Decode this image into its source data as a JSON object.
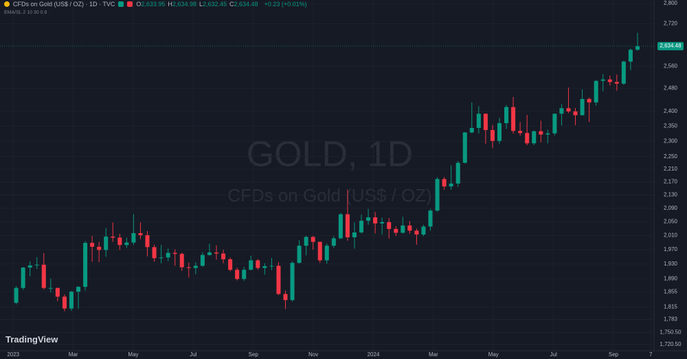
{
  "header": {
    "symbol": "CFDs on Gold (US$ / OZ) · 1D · TVC",
    "ohlc": [
      {
        "key": "O",
        "value": "2,633.95"
      },
      {
        "key": "H",
        "value": "2,634.98"
      },
      {
        "key": "L",
        "value": "2,632.45"
      },
      {
        "key": "C",
        "value": "2,634.48"
      }
    ],
    "change": "+0.23 (+0.01%)",
    "indicator": "EMA/SL 2 10 30 0.6",
    "watermark": "GOLD, 1D",
    "watermark_sub": "CFDs on Gold (US$ / OZ)",
    "brand": "TradingView"
  },
  "chart_data": {
    "type": "candlestick",
    "log_scale": true,
    "grid": true,
    "up_color": "#089981",
    "down_color": "#f23645",
    "last_price": {
      "value": 2634.48,
      "label": "2,634.48"
    },
    "xlim": [
      -0.44,
      21.35
    ],
    "xticks": [
      {
        "value": 0,
        "label": "2023"
      },
      {
        "value": 2,
        "label": "Mar"
      },
      {
        "value": 4,
        "label": "May"
      },
      {
        "value": 6,
        "label": "Jul"
      },
      {
        "value": 8,
        "label": "Sep"
      },
      {
        "value": 10,
        "label": "Nov"
      },
      {
        "value": 12,
        "label": "2024"
      },
      {
        "value": 14,
        "label": "Mar"
      },
      {
        "value": 16,
        "label": "May"
      },
      {
        "value": 18,
        "label": "Jul"
      },
      {
        "value": 20,
        "label": "Sep"
      },
      {
        "value": 21.24,
        "label": "7"
      }
    ],
    "ylim": [
      1705,
      2814
    ],
    "yticks": [
      {
        "value": 2800,
        "label": "2,800"
      },
      {
        "value": 2720,
        "label": "2,720"
      },
      {
        "value": 2560,
        "label": "2,560"
      },
      {
        "value": 2480,
        "label": "2,480"
      },
      {
        "value": 2400,
        "label": "2,400"
      },
      {
        "value": 2350,
        "label": "2,350"
      },
      {
        "value": 2300,
        "label": "2,300"
      },
      {
        "value": 2250,
        "label": "2,250"
      },
      {
        "value": 2210,
        "label": "2,210"
      },
      {
        "value": 2170,
        "label": "2,170"
      },
      {
        "value": 2130,
        "label": "2,130"
      },
      {
        "value": 2090,
        "label": "2,090"
      },
      {
        "value": 2050,
        "label": "2,050"
      },
      {
        "value": 2010,
        "label": "2,010"
      },
      {
        "value": 1970,
        "label": "1,970"
      },
      {
        "value": 1930,
        "label": "1,930"
      },
      {
        "value": 1890,
        "label": "1,890"
      },
      {
        "value": 1855,
        "label": "1,855"
      },
      {
        "value": 1815,
        "label": "1,815"
      },
      {
        "value": 1783,
        "label": "1,783"
      },
      {
        "value": 1750.5,
        "label": "1,750.50"
      },
      {
        "value": 1720.5,
        "label": "1,720.50"
      }
    ],
    "x": [
      0.1,
      0.33,
      0.56,
      0.79,
      1.02,
      1.25,
      1.48,
      1.71,
      1.94,
      2.17,
      2.4,
      2.63,
      2.86,
      3.09,
      3.32,
      3.55,
      3.78,
      4.01,
      4.24,
      4.47,
      4.7,
      4.93,
      5.16,
      5.39,
      5.62,
      5.85,
      6.08,
      6.31,
      6.54,
      6.77,
      7,
      7.23,
      7.46,
      7.69,
      7.92,
      8.15,
      8.38,
      8.61,
      8.84,
      9.07,
      9.3,
      9.53,
      9.76,
      9.99,
      10.22,
      10.45,
      10.68,
      10.91,
      11.14,
      11.37,
      11.6,
      11.83,
      12.06,
      12.29,
      12.52,
      12.75,
      12.98,
      13.21,
      13.44,
      13.67,
      13.9,
      14.13,
      14.36,
      14.59,
      14.82,
      15.05,
      15.28,
      15.51,
      15.74,
      15.97,
      16.2,
      16.43,
      16.66,
      16.89,
      17.12,
      17.35,
      17.58,
      17.81,
      18.04,
      18.27,
      18.5,
      18.73,
      18.96,
      19.19,
      19.42,
      19.65,
      19.88,
      20.11,
      20.34,
      20.57,
      20.8
    ],
    "open": [
      1826,
      1865,
      1920,
      1926,
      1928,
      1865,
      1865,
      1842,
      1811,
      1855,
      1868,
      1989,
      1978,
      1969,
      2007,
      2004,
      1983,
      1990,
      2017,
      2011,
      1977,
      1946,
      1948,
      1961,
      1958,
      1921,
      1919,
      1925,
      1955,
      1962,
      1959,
      1943,
      1914,
      1889,
      1914,
      1940,
      1919,
      1924,
      1925,
      1849,
      1833,
      1933,
      1981,
      2006,
      1992,
      1940,
      1981,
      2002,
      2072,
      2005,
      2019,
      2053,
      2063,
      2045,
      2049,
      2029,
      2018,
      2039,
      2024,
      2013,
      2036,
      2083,
      2179,
      2156,
      2165,
      2230,
      2329,
      2344,
      2392,
      2337,
      2301,
      2360,
      2415,
      2334,
      2327,
      2293,
      2333,
      2322,
      2326,
      2392,
      2411,
      2400,
      2387,
      2443,
      2431,
      2507,
      2512,
      2503,
      2497,
      2577,
      2621
    ],
    "high": [
      1870,
      1922,
      1937,
      1949,
      1960,
      1890,
      1866,
      1848,
      1857,
      1870,
      1994,
      2009,
      1992,
      2032,
      2048,
      2015,
      2004,
      2072,
      2048,
      2023,
      1984,
      1983,
      1973,
      1971,
      1962,
      1934,
      1935,
      1963,
      1987,
      1982,
      1970,
      1948,
      1920,
      1922,
      1953,
      1944,
      1932,
      1947,
      1935,
      1858,
      1937,
      1997,
      2009,
      2009,
      1993,
      1987,
      2008,
      2076,
      2146,
      2048,
      2071,
      2088,
      2079,
      2062,
      2061,
      2037,
      2065,
      2052,
      2030,
      2041,
      2088,
      2185,
      2185,
      2222,
      2236,
      2330,
      2431,
      2418,
      2393,
      2354,
      2378,
      2422,
      2450,
      2364,
      2388,
      2335,
      2368,
      2338,
      2393,
      2425,
      2483,
      2412,
      2477,
      2448,
      2509,
      2531,
      2526,
      2530,
      2580,
      2625,
      2685
    ],
    "low": [
      1822,
      1860,
      1896,
      1916,
      1861,
      1853,
      1830,
      1804,
      1805,
      1810,
      1858,
      1936,
      1935,
      1950,
      1992,
      1969,
      1975,
      1983,
      2000,
      1951,
      1936,
      1932,
      1938,
      1925,
      1911,
      1893,
      1902,
      1922,
      1953,
      1942,
      1932,
      1910,
      1885,
      1884,
      1913,
      1914,
      1901,
      1913,
      1846,
      1810,
      1829,
      1931,
      1954,
      1970,
      1933,
      1931,
      1975,
      2000,
      1995,
      1973,
      2016,
      2041,
      2016,
      2013,
      2001,
      2009,
      2016,
      2015,
      1984,
      2008,
      2024,
      2079,
      2146,
      2146,
      2155,
      2228,
      2326,
      2325,
      2292,
      2277,
      2292,
      2341,
      2325,
      2318,
      2287,
      2287,
      2296,
      2293,
      2319,
      2352,
      2394,
      2353,
      2386,
      2364,
      2420,
      2470,
      2490,
      2472,
      2493,
      2546,
      2617
    ],
    "close": [
      1865,
      1920,
      1926,
      1928,
      1865,
      1865,
      1842,
      1811,
      1855,
      1868,
      1989,
      1978,
      1969,
      2007,
      2004,
      1983,
      1990,
      2017,
      2011,
      1977,
      1946,
      1948,
      1961,
      1958,
      1921,
      1919,
      1925,
      1955,
      1962,
      1959,
      1943,
      1914,
      1889,
      1914,
      1940,
      1919,
      1924,
      1925,
      1849,
      1833,
      1933,
      1981,
      2006,
      1992,
      1940,
      1981,
      2002,
      2072,
      2005,
      2019,
      2053,
      2063,
      2045,
      2049,
      2029,
      2018,
      2039,
      2024,
      2013,
      2036,
      2083,
      2179,
      2156,
      2165,
      2230,
      2329,
      2344,
      2392,
      2337,
      2301,
      2360,
      2415,
      2334,
      2327,
      2293,
      2333,
      2322,
      2326,
      2392,
      2411,
      2400,
      2387,
      2443,
      2431,
      2507,
      2512,
      2503,
      2497,
      2577,
      2621,
      2634.48
    ]
  }
}
